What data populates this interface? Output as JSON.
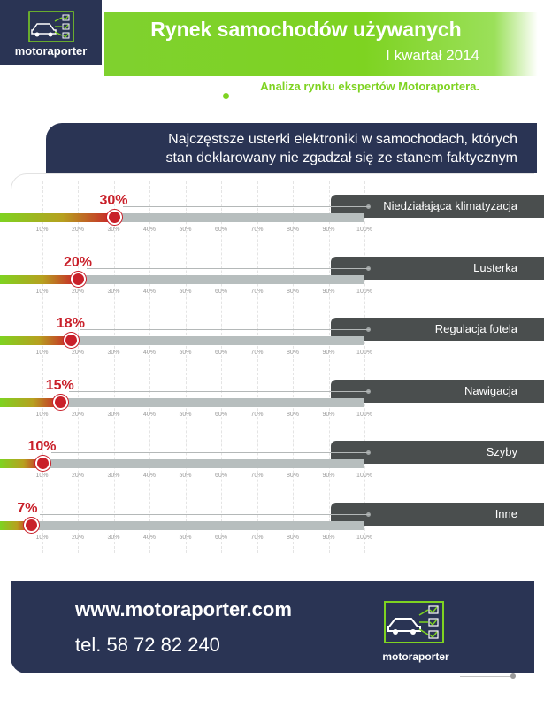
{
  "header": {
    "logo_text": "motoraporter",
    "title": "Rynek samochodów używanych",
    "subtitle": "I kwartał 2014",
    "tagline": "Analiza rynku ekspertów Motoraportera."
  },
  "question": {
    "line1": "Najczęstsze usterki elektroniki w samochodach, których",
    "line2": "stan deklarowany nie zgadzał się ze stanem faktycznym"
  },
  "colors": {
    "navy": "#2a3454",
    "green": "#7ed321",
    "red": "#c9202a",
    "label_bg": "#4a4e4e",
    "track": "#b7bebe"
  },
  "chart_data": {
    "type": "bar",
    "title": "Najczęstsze usterki elektroniki w samochodach, których stan deklarowany nie zgadzał się ze stanem faktycznym",
    "categories": [
      "Niedziałająca klimatyzacja",
      "Lusterka",
      "Regulacja fotela",
      "Nawigacja",
      "Szyby",
      "Inne"
    ],
    "values": [
      30,
      20,
      18,
      15,
      10,
      7
    ],
    "value_labels": [
      "30%",
      "20%",
      "18%",
      "15%",
      "10%",
      "7%"
    ],
    "xlim": [
      0,
      100
    ],
    "x_ticks": [
      "10%",
      "20%",
      "30%",
      "40%",
      "50%",
      "60%",
      "70%",
      "80%",
      "90%",
      "100%"
    ],
    "grid": true
  },
  "footer": {
    "url": "www.motoraporter.com",
    "tel": "tel. 58 72 82 240",
    "logo_text": "motoraporter"
  }
}
